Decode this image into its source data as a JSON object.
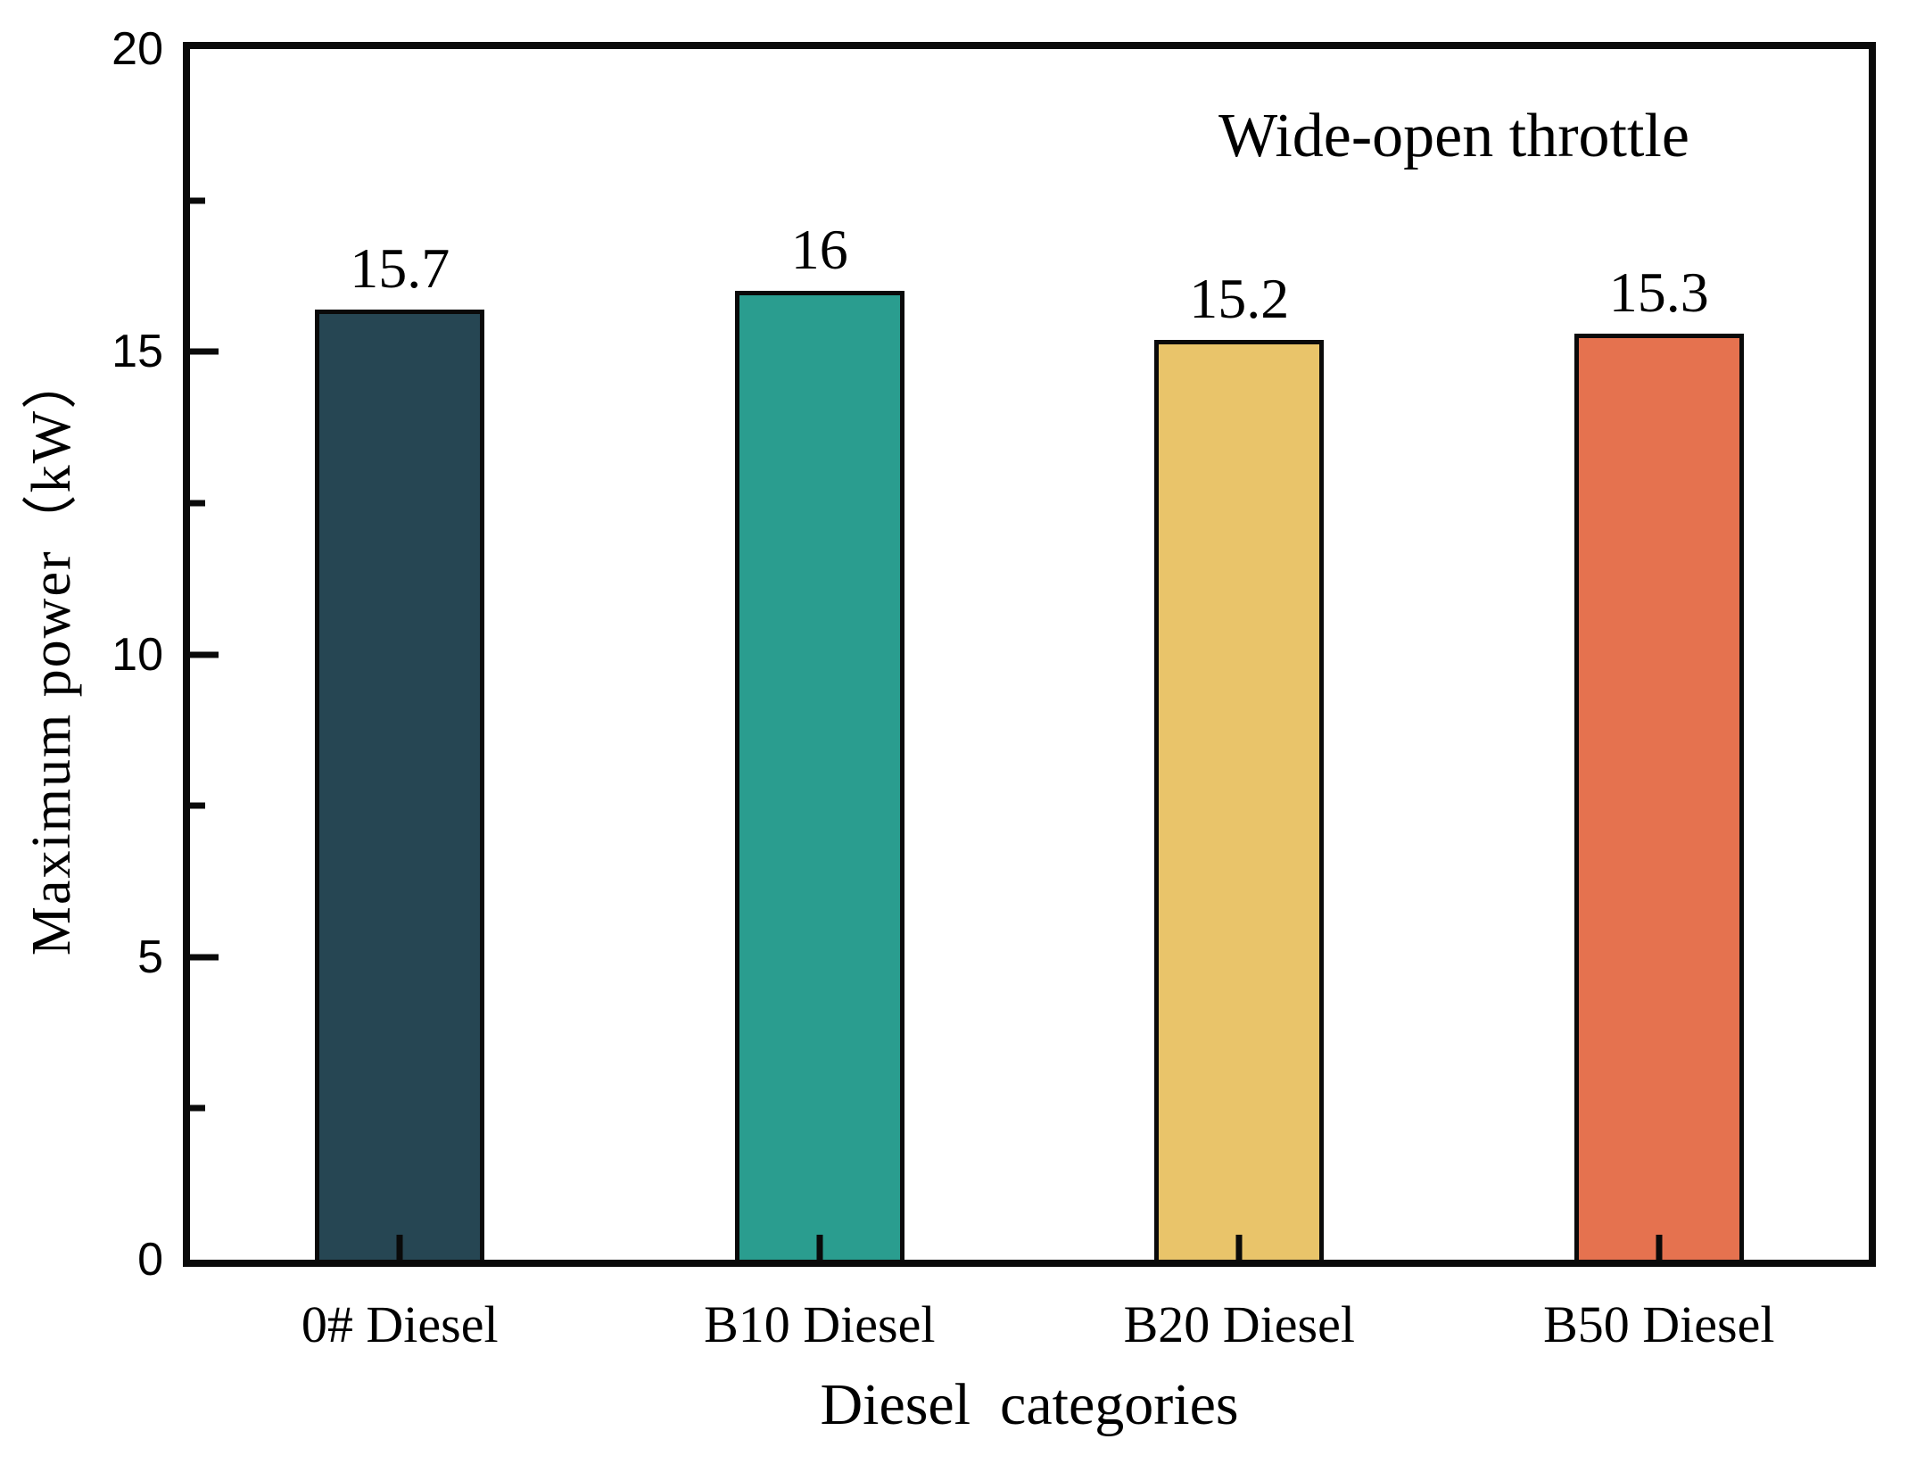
{
  "chart_data": {
    "type": "bar",
    "title": "",
    "annotation": "Wide-open throttle",
    "xlabel": "Diesel  categories",
    "ylabel": "Maximum power（kW）",
    "categories": [
      "0# Diesel",
      "B10 Diesel",
      "B20 Diesel",
      "B50 Diesel"
    ],
    "values": [
      15.7,
      16,
      15.2,
      15.3
    ],
    "value_labels": [
      "15.7",
      "16",
      "15.2",
      "15.3"
    ],
    "bar_colors": [
      "#264653",
      "#2a9d8f",
      "#e9c46a",
      "#e5724f"
    ],
    "bar_border_color": "#0a0a0a",
    "ylim": [
      0,
      20
    ],
    "yticks_major": [
      0,
      5,
      10,
      15,
      20
    ],
    "yticks_minor": [
      2.5,
      7.5,
      12.5,
      17.5
    ],
    "grid": false,
    "legend_position": "none"
  }
}
